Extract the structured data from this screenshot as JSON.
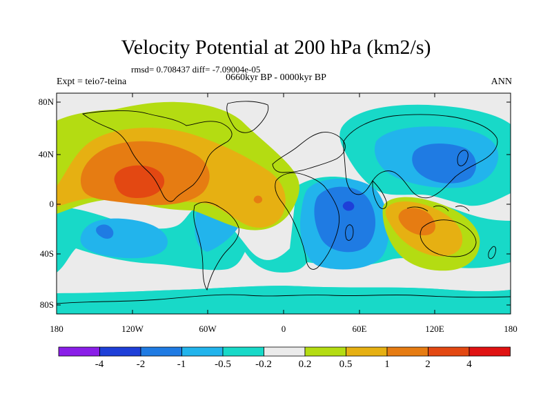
{
  "title": "Velocity Potential at 200 hPa (km2/s)",
  "stats_line": "rmsd= 0.708437 diff= -7.09004e-05",
  "experiment": "Expt = teio7-teina",
  "period": "0660kyr BP - 0000kyr BP",
  "season": "ANN",
  "lat_labels": [
    "80N",
    "40N",
    "0",
    "40S",
    "80S"
  ],
  "lon_labels": [
    "180",
    "120W",
    "60W",
    "0",
    "60E",
    "120E",
    "180"
  ],
  "colorbar": {
    "labels": [
      "-4",
      "-2",
      "-1",
      "-0.5",
      "-0.2",
      "0.2",
      "0.5",
      "1",
      "2",
      "4"
    ],
    "colors": [
      "#8a1ee8",
      "#1e3fd8",
      "#1f7be3",
      "#22b4ec",
      "#18d9c8",
      "#ebebeb",
      "#b4dc12",
      "#e6b012",
      "#e67c12",
      "#e34812",
      "#e01212"
    ]
  },
  "colors": {
    "background_ocean": "#ebebeb",
    "coastline": "#000000"
  }
}
